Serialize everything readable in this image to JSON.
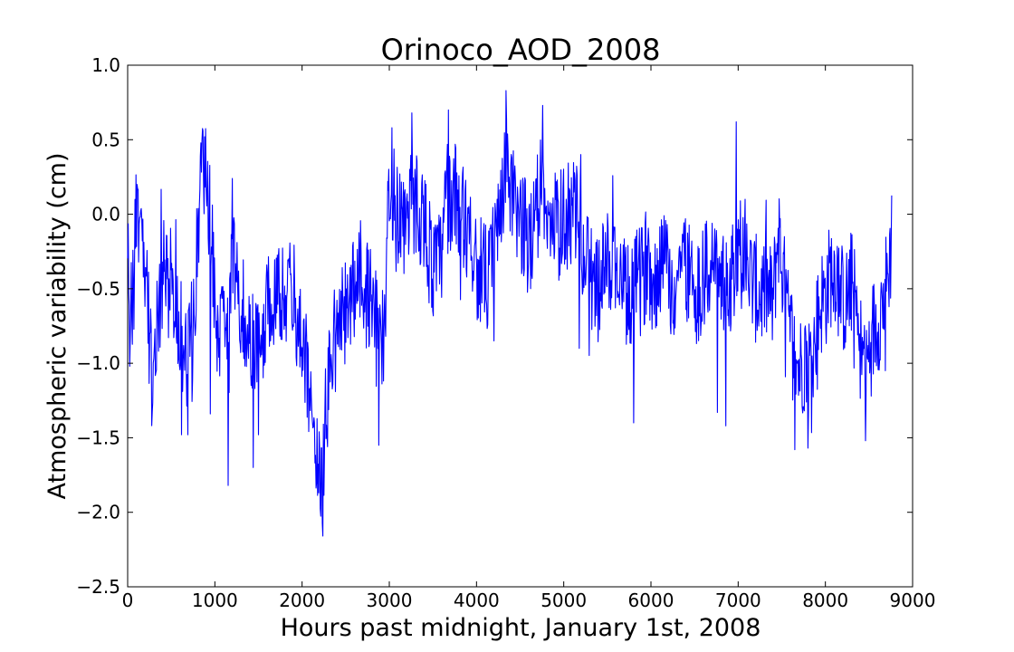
{
  "chart_data": {
    "type": "line",
    "title": "Orinoco_AOD_2008",
    "xlabel": "Hours past midnight, January 1st, 2008",
    "ylabel": "Atmospheric variability (cm)",
    "xlim": [
      0,
      9000
    ],
    "ylim": [
      -2.5,
      1.0
    ],
    "xticks": [
      0,
      1000,
      2000,
      3000,
      4000,
      5000,
      6000,
      7000,
      8000,
      9000
    ],
    "xtick_labels": [
      "0",
      "1000",
      "2000",
      "3000",
      "4000",
      "5000",
      "6000",
      "7000",
      "8000",
      "9000"
    ],
    "yticks": [
      -2.5,
      -2.0,
      -1.5,
      -1.0,
      -0.5,
      0.0,
      0.5,
      1.0
    ],
    "ytick_labels": [
      "−2.5",
      "−2.0",
      "−1.5",
      "−1.0",
      "−0.5",
      "0.0",
      "0.5",
      "1.0"
    ],
    "grid": false,
    "series": [
      {
        "color": "#0000ff",
        "step": 6,
        "x_start": 0,
        "x_end": 8760,
        "anchors": [
          [
            0,
            -0.4
          ],
          [
            60,
            -0.6
          ],
          [
            110,
            0.15
          ],
          [
            160,
            -0.25
          ],
          [
            220,
            -0.55
          ],
          [
            280,
            -1.1
          ],
          [
            330,
            -0.7
          ],
          [
            400,
            -0.4
          ],
          [
            480,
            -0.35
          ],
          [
            560,
            -0.6
          ],
          [
            620,
            -0.8
          ],
          [
            680,
            -0.9
          ],
          [
            760,
            -0.7
          ],
          [
            830,
            0.2
          ],
          [
            880,
            0.35
          ],
          [
            940,
            0.05
          ],
          [
            1000,
            -0.55
          ],
          [
            1050,
            -0.85
          ],
          [
            1120,
            -0.7
          ],
          [
            1160,
            -0.9
          ],
          [
            1200,
            -0.3
          ],
          [
            1260,
            -0.5
          ],
          [
            1320,
            -0.6
          ],
          [
            1400,
            -0.85
          ],
          [
            1460,
            -0.95
          ],
          [
            1540,
            -0.8
          ],
          [
            1620,
            -0.6
          ],
          [
            1700,
            -0.5
          ],
          [
            1780,
            -0.55
          ],
          [
            1860,
            -0.45
          ],
          [
            1940,
            -0.65
          ],
          [
            2000,
            -0.8
          ],
          [
            2060,
            -1.0
          ],
          [
            2120,
            -1.4
          ],
          [
            2180,
            -1.6
          ],
          [
            2230,
            -1.75
          ],
          [
            2280,
            -1.3
          ],
          [
            2340,
            -0.9
          ],
          [
            2400,
            -0.8
          ],
          [
            2460,
            -0.7
          ],
          [
            2540,
            -0.6
          ],
          [
            2600,
            -0.5
          ],
          [
            2660,
            -0.3
          ],
          [
            2720,
            -0.55
          ],
          [
            2800,
            -0.5
          ],
          [
            2880,
            -0.8
          ],
          [
            2930,
            -0.9
          ],
          [
            2980,
            -0.1
          ],
          [
            3040,
            0.2
          ],
          [
            3100,
            0.0
          ],
          [
            3180,
            -0.05
          ],
          [
            3260,
            0.1
          ],
          [
            3340,
            0.05
          ],
          [
            3420,
            -0.1
          ],
          [
            3500,
            -0.4
          ],
          [
            3580,
            -0.35
          ],
          [
            3660,
            0.1
          ],
          [
            3740,
            0.15
          ],
          [
            3820,
            -0.05
          ],
          [
            3900,
            0.0
          ],
          [
            3980,
            -0.3
          ],
          [
            4060,
            -0.4
          ],
          [
            4140,
            -0.45
          ],
          [
            4220,
            -0.2
          ],
          [
            4300,
            0.2
          ],
          [
            4360,
            0.3
          ],
          [
            4440,
            0.0
          ],
          [
            4520,
            -0.05
          ],
          [
            4600,
            -0.2
          ],
          [
            4680,
            0.05
          ],
          [
            4760,
            0.25
          ],
          [
            4840,
            0.0
          ],
          [
            4920,
            -0.15
          ],
          [
            5000,
            0.0
          ],
          [
            5080,
            0.0
          ],
          [
            5160,
            -0.05
          ],
          [
            5240,
            -0.25
          ],
          [
            5320,
            -0.45
          ],
          [
            5400,
            -0.5
          ],
          [
            5480,
            -0.35
          ],
          [
            5560,
            -0.3
          ],
          [
            5640,
            -0.4
          ],
          [
            5720,
            -0.6
          ],
          [
            5800,
            -0.5
          ],
          [
            5880,
            -0.45
          ],
          [
            5960,
            -0.3
          ],
          [
            6040,
            -0.45
          ],
          [
            6120,
            -0.3
          ],
          [
            6200,
            -0.4
          ],
          [
            6280,
            -0.55
          ],
          [
            6360,
            -0.25
          ],
          [
            6440,
            -0.4
          ],
          [
            6520,
            -0.5
          ],
          [
            6600,
            -0.45
          ],
          [
            6680,
            -0.35
          ],
          [
            6760,
            -0.3
          ],
          [
            6840,
            -0.55
          ],
          [
            6920,
            -0.4
          ],
          [
            7000,
            -0.2
          ],
          [
            7080,
            -0.35
          ],
          [
            7160,
            -0.45
          ],
          [
            7240,
            -0.55
          ],
          [
            7320,
            -0.5
          ],
          [
            7400,
            -0.6
          ],
          [
            7460,
            -0.1
          ],
          [
            7520,
            -0.45
          ],
          [
            7580,
            -0.75
          ],
          [
            7640,
            -0.9
          ],
          [
            7700,
            -1.05
          ],
          [
            7760,
            -0.95
          ],
          [
            7820,
            -1.0
          ],
          [
            7880,
            -0.85
          ],
          [
            7940,
            -0.6
          ],
          [
            8000,
            -0.55
          ],
          [
            8060,
            -0.4
          ],
          [
            8120,
            -0.35
          ],
          [
            8180,
            -0.55
          ],
          [
            8240,
            -0.6
          ],
          [
            8300,
            -0.45
          ],
          [
            8360,
            -0.7
          ],
          [
            8420,
            -0.95
          ],
          [
            8480,
            -1.0
          ],
          [
            8540,
            -0.8
          ],
          [
            8600,
            -0.7
          ],
          [
            8660,
            -0.6
          ],
          [
            8720,
            -0.4
          ],
          [
            8760,
            -0.15
          ]
        ],
        "peaks": [
          [
            110,
            0.2
          ],
          [
            280,
            -1.32
          ],
          [
            620,
            -1.48
          ],
          [
            690,
            -1.48
          ],
          [
            880,
            0.52
          ],
          [
            950,
            -1.34
          ],
          [
            1150,
            -1.82
          ],
          [
            1200,
            0.24
          ],
          [
            1440,
            -1.7
          ],
          [
            1500,
            -1.48
          ],
          [
            2240,
            -2.16
          ],
          [
            2880,
            -1.55
          ],
          [
            3030,
            0.58
          ],
          [
            3260,
            0.68
          ],
          [
            3680,
            0.7
          ],
          [
            4200,
            -0.85
          ],
          [
            4340,
            0.83
          ],
          [
            4760,
            0.73
          ],
          [
            5180,
            -0.9
          ],
          [
            5800,
            -1.4
          ],
          [
            6760,
            -1.33
          ],
          [
            6860,
            -1.42
          ],
          [
            6980,
            0.62
          ],
          [
            7650,
            -1.58
          ],
          [
            7800,
            -1.57
          ],
          [
            8460,
            -1.52
          ],
          [
            8690,
            -1.05
          ]
        ]
      }
    ]
  }
}
